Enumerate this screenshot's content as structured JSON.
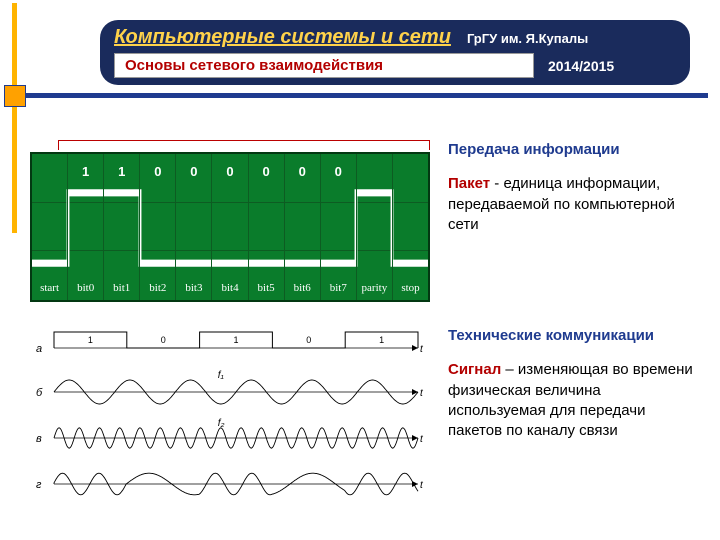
{
  "header": {
    "title": "Компьютерные системы и сети",
    "university": "ГрГУ им. Я.Купалы",
    "subtitle": "Основы сетевого взаимодействия",
    "year": "2014/2015",
    "colors": {
      "bg": "#1a2b5c",
      "title": "#ffd24a",
      "text": "#ffffff",
      "subtitle": "#b30000"
    }
  },
  "accent": {
    "hcolor": "#1f3b8f",
    "vcolor": "#ffb400",
    "sqcolor": "#ffa100"
  },
  "scope": {
    "bg": "#0a7c2b",
    "border": "#033812",
    "grid": "#0d5c22",
    "wave_color": "#ffffff",
    "wave_stroke": 3,
    "high_y": 0.1,
    "low_y": 0.9,
    "cols": [
      {
        "label": "start",
        "value": "",
        "level": 0
      },
      {
        "label": "bit0",
        "value": "1",
        "level": 1
      },
      {
        "label": "bit1",
        "value": "1",
        "level": 1
      },
      {
        "label": "bit2",
        "value": "0",
        "level": 0
      },
      {
        "label": "bit3",
        "value": "0",
        "level": 0
      },
      {
        "label": "bit4",
        "value": "0",
        "level": 0
      },
      {
        "label": "bit5",
        "value": "0",
        "level": 0
      },
      {
        "label": "bit6",
        "value": "0",
        "level": 0
      },
      {
        "label": "bit7",
        "value": "0",
        "level": 0
      },
      {
        "label": "parity",
        "value": "",
        "level": 1
      },
      {
        "label": "stop",
        "value": "",
        "level": 0
      }
    ]
  },
  "section1": {
    "heading": "Передача информации",
    "term": "Пакет",
    "body": " - единица информации, передаваемой по компьютерной сети"
  },
  "section2": {
    "heading": "Технические коммуникации",
    "term": "Сигнал",
    "body": " – изменяющая во времени физическая величина используемая для передачи пакетов по каналу связи"
  },
  "waves": {
    "digital_bits": [
      1,
      0,
      1,
      0,
      1
    ],
    "carrier_f1": 6,
    "carrier_f2": 18,
    "fsk_f_high": 10,
    "fsk_f_low": 4,
    "amplitude": 12,
    "stroke": "#000000",
    "labels": {
      "a": "а",
      "b": "б",
      "v": "в",
      "g": "г",
      "t": "t",
      "f1": "f₁",
      "f2": "f₂"
    }
  }
}
